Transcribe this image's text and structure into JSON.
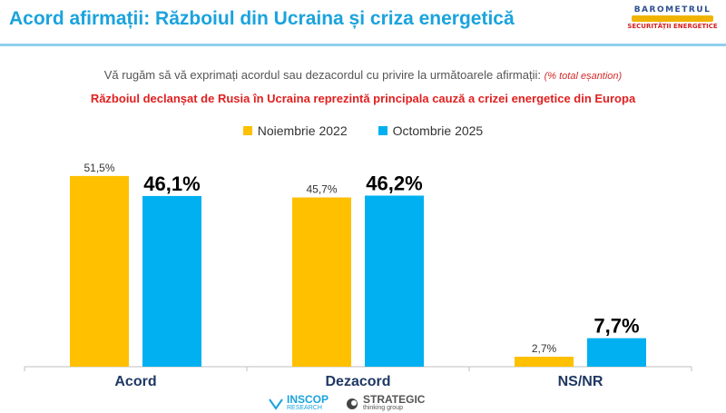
{
  "header": {
    "title": "Acord afirmații: Războiul din Ucraina și criza energetică",
    "logo_top": "BAROMETRUL",
    "logo_sub": "SECURITĂȚII ENERGETICE"
  },
  "subtitle": {
    "text": "Vă rugăm să vă exprimați acordul sau dezacordul cu privire la următoarele afirmații:",
    "note": "(% total eșantion)"
  },
  "statement": "Războiul declanșat de Rusia în Ucraina reprezintă principala cauză a crizei energetice din Europa",
  "footer": {
    "inscop_name": "INSCOP",
    "inscop_sub": "RESEARCH",
    "strategic_name": "STRATEGIC",
    "strategic_sub": "thinking group"
  },
  "colors": {
    "title": "#1aa3dd",
    "series_2022": "#ffc000",
    "series_2025": "#00b0f0",
    "statement": "#e02020"
  },
  "chart_data": {
    "type": "bar",
    "categories": [
      "Acord",
      "Dezacord",
      "NS/NR"
    ],
    "series": [
      {
        "name": "Noiembrie 2022",
        "values": [
          51.5,
          45.7,
          2.7
        ],
        "labels": [
          "51,5%",
          "45,7%",
          "2,7%"
        ],
        "color": "#ffc000"
      },
      {
        "name": "Octombrie 2025",
        "values": [
          46.1,
          46.2,
          7.7
        ],
        "labels": [
          "46,1%",
          "46,2%",
          "7,7%"
        ],
        "color": "#00b0f0"
      }
    ],
    "ylim": [
      0,
      60
    ],
    "legend": "top-center",
    "grid": false
  }
}
